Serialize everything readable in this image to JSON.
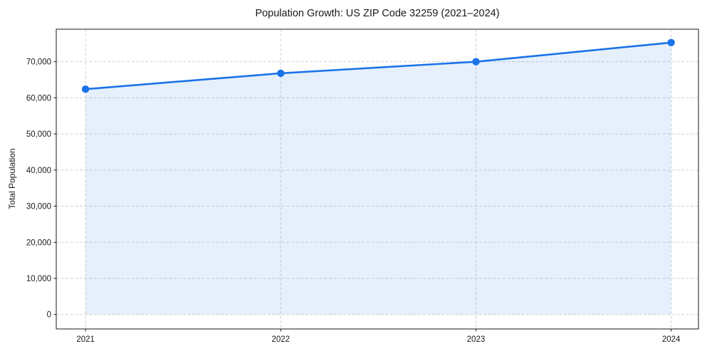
{
  "chart_data": {
    "type": "area",
    "title": "Population Growth: US ZIP Code 32259 (2021–2024)",
    "xlabel": "",
    "ylabel": "Total Population",
    "x": [
      2021,
      2022,
      2023,
      2024
    ],
    "x_tick_labels": [
      "2021",
      "2022",
      "2023",
      "2024"
    ],
    "values": [
      62400,
      66800,
      70000,
      75300
    ],
    "yticks": [
      0,
      10000,
      20000,
      30000,
      40000,
      50000,
      60000,
      70000
    ],
    "ytick_labels": [
      "0",
      "10,000",
      "20,000",
      "30,000",
      "40,000",
      "50,000",
      "60,000",
      "70,000"
    ],
    "xlim": [
      2020.85,
      2024.14
    ],
    "ylim": [
      -4000,
      79000
    ],
    "fill_baseline": 0,
    "grid": true,
    "grid_style": "dashed",
    "legend": "none",
    "colors": {
      "line": "#1a73e8",
      "marker": "#1a73e8",
      "fill": "rgba(26,115,232,0.11)",
      "grid": "#d2d2d2",
      "frame": "#1a1a1a",
      "text": "#1a1a1a"
    }
  }
}
